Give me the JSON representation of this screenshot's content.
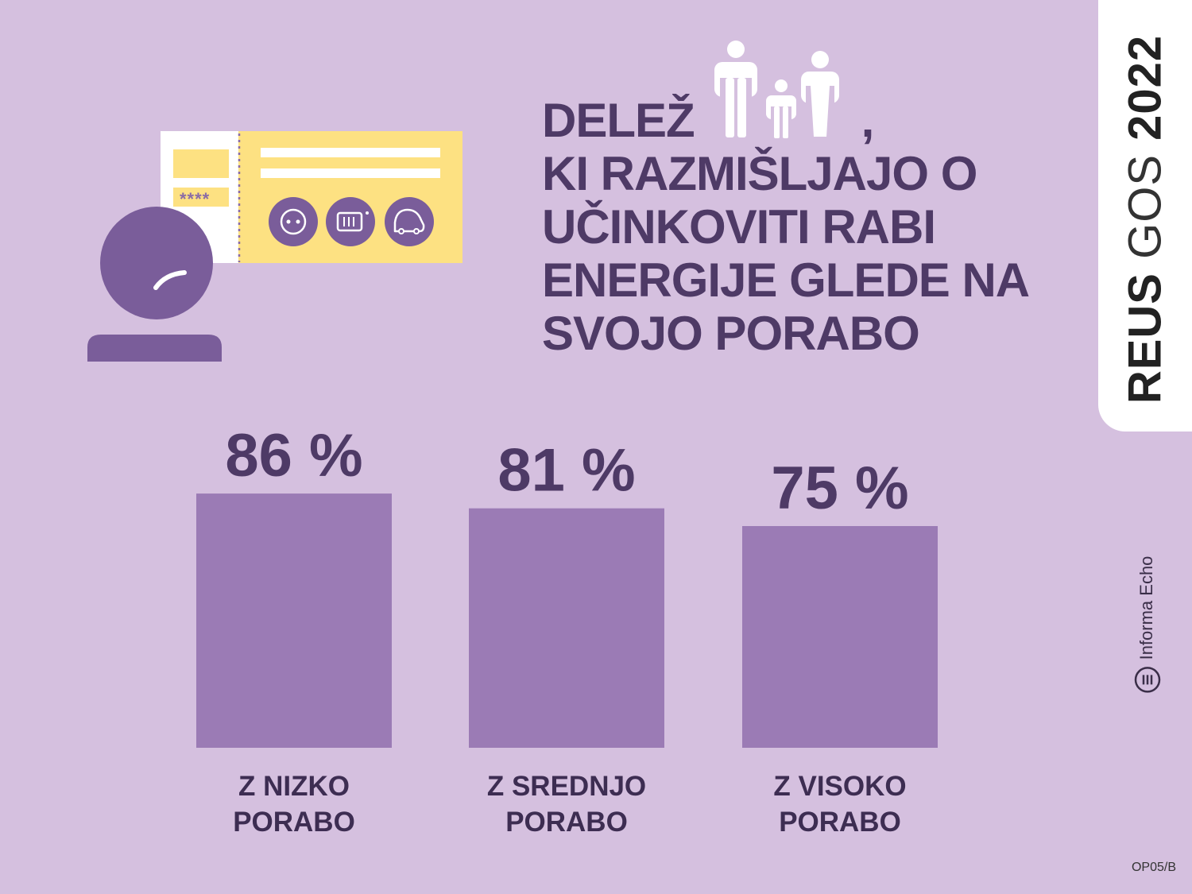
{
  "title": {
    "line1_prefix": "DELEŽ",
    "line1_suffix": ",",
    "line2": "KI RAZMIŠLJAJO O",
    "line3": "UČINKOVITI RABI",
    "line4": "ENERGIJE GLEDE NA",
    "line5": "SVOJO PORABO"
  },
  "side_tab": {
    "reus": "REUS",
    "gos": "GOS",
    "year": "2022"
  },
  "brand": {
    "name": "Informa Echo",
    "icon": "informa-echo-logo-icon"
  },
  "code": "OP05/B",
  "illustration": {
    "card_stars": "****",
    "icons": [
      "socket-icon",
      "radiator-icon",
      "car-icon",
      "person-icon",
      "family-icon"
    ]
  },
  "colors": {
    "background": "#d5c0df",
    "bar": "#9b7bb5",
    "text": "#4e3a66",
    "figure": "#7a5d9a",
    "card": "#fde182"
  },
  "chart_data": {
    "type": "bar",
    "categories": [
      "Z NIZKO PORABO",
      "Z SREDNJO PORABO",
      "Z VISOKO PORABO"
    ],
    "category_lines": [
      [
        "Z NIZKO",
        "PORABO"
      ],
      [
        "Z SREDNJO",
        "PORABO"
      ],
      [
        "Z VISOKO",
        "PORABO"
      ]
    ],
    "values": [
      86,
      81,
      75
    ],
    "value_labels": [
      "86 %",
      "81 %",
      "75 %"
    ],
    "unit": "%",
    "ylim": [
      0,
      100
    ],
    "grid": false,
    "legend": "none"
  }
}
